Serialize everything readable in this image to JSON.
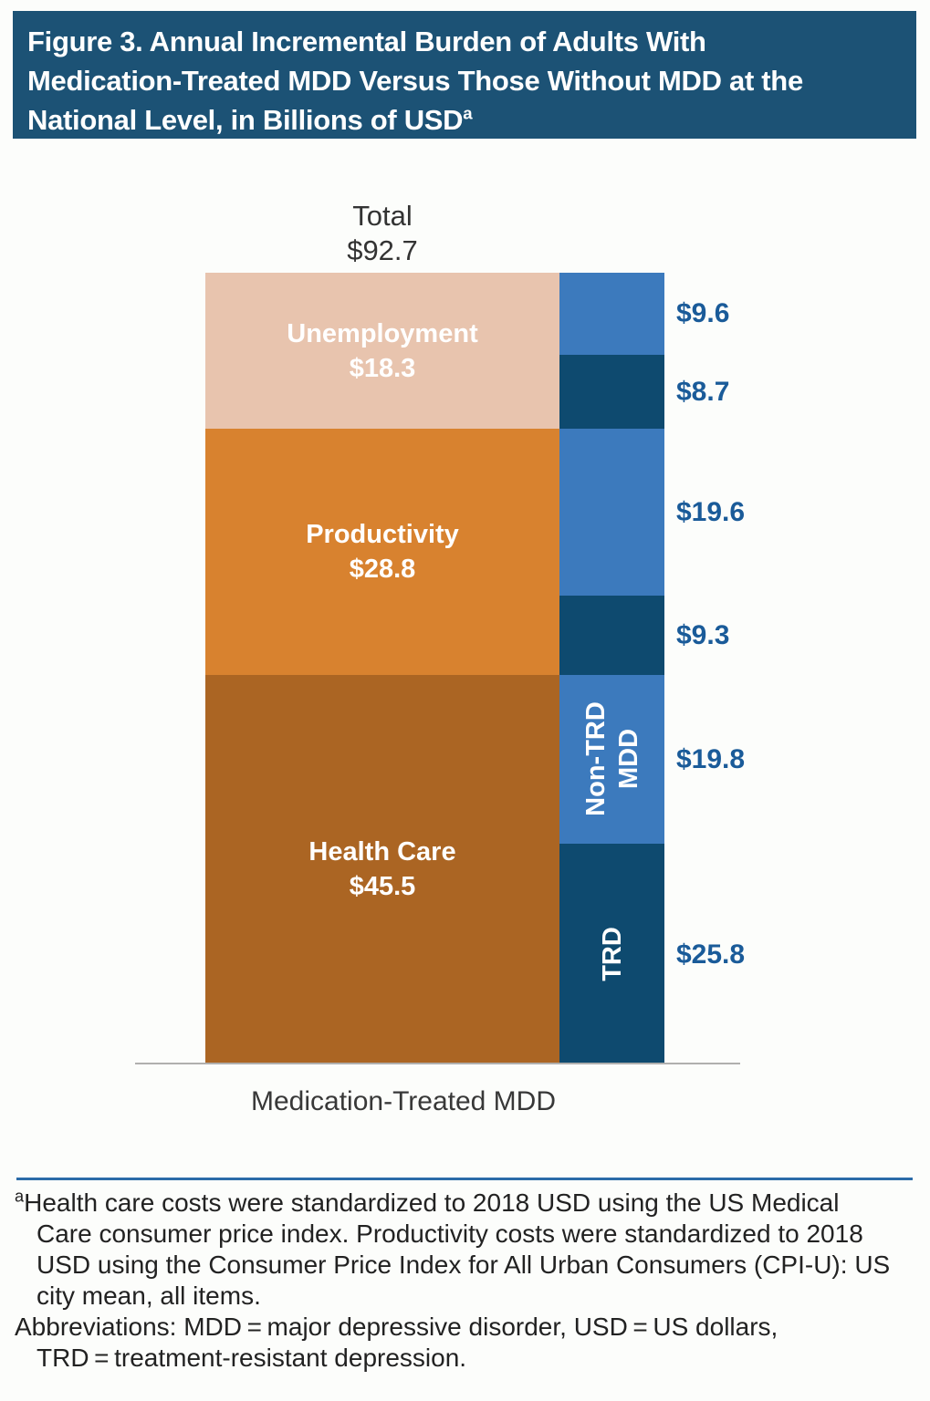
{
  "header": {
    "bg": "#1c5275",
    "line1": "Figure 3. Annual Incremental Burden of Adults With",
    "line2": "Medication-Treated MDD Versus Those Without MDD at the",
    "line3": "National Level, in Billions of USD",
    "sup": "a"
  },
  "chart_data": {
    "type": "bar",
    "subtype": "stacked-bar-pair",
    "title": "Figure 3. Annual Incremental Burden of Adults With Medication-Treated MDD Versus Those Without MDD at the National Level, in Billions of USD",
    "unit": "billions of USD",
    "categories": [
      "Medication-Treated MDD"
    ],
    "x_category_label": "Medication-Treated MDD",
    "total": 92.7,
    "total_label": "Total",
    "total_value_label": "$92.7",
    "ylim": [
      0,
      92.7
    ],
    "grid": false,
    "legend": "none",
    "cost_stack": {
      "description": "left stacked bar: incremental burden by cost category",
      "segments": [
        {
          "name": "Unemployment",
          "label": "Unemployment",
          "value": 18.3,
          "value_label": "$18.3",
          "color": "#e8c4ae"
        },
        {
          "name": "Productivity",
          "label": "Productivity",
          "value": 28.8,
          "value_label": "$28.8",
          "color": "#d8822f"
        },
        {
          "name": "Health Care",
          "label": "Health Care",
          "value": 45.5,
          "value_label": "$45.5",
          "color": "#ab6523"
        }
      ]
    },
    "subtype_stack": {
      "description": "right stacked bar: same burden split by Non-TRD MDD vs TRD within each cost category",
      "segments": [
        {
          "name": "Non-TRD MDD - Unemployment",
          "value": 9.6,
          "value_label": "$9.6",
          "color": "#3c7abd"
        },
        {
          "name": "TRD - Unemployment",
          "value": 8.7,
          "value_label": "$8.7",
          "color": "#0e4a6f"
        },
        {
          "name": "Non-TRD MDD - Productivity",
          "value": 19.6,
          "value_label": "$19.6",
          "color": "#3c7abd"
        },
        {
          "name": "TRD - Productivity",
          "value": 9.3,
          "value_label": "$9.3",
          "color": "#0e4a6f"
        },
        {
          "name": "Non-TRD MDD - Health Care",
          "value": 19.8,
          "value_label": "$19.8",
          "color": "#3c7abd",
          "inner_label_line1": "Non-TRD",
          "inner_label_line2": "MDD"
        },
        {
          "name": "TRD - Health Care",
          "value": 25.8,
          "value_label": "$25.8",
          "color": "#0e4a6f",
          "inner_label": "TRD"
        }
      ]
    }
  },
  "footnote": {
    "sup": "a",
    "line1": "Health care costs were standardized to 2018 USD using the US Medical",
    "line2": "Care consumer price index. Productivity costs were standardized to 2018",
    "line3": "USD using the Consumer Price Index for All Urban Consumers (CPI-U): US",
    "line4": "city mean, all items.",
    "line5": "Abbreviations: MDD = major depressive disorder, USD = US dollars,",
    "line6": "TRD = treatment-resistant depression."
  },
  "colors": {
    "header_bg": "#1c5275",
    "unemployment": "#e8c4ae",
    "productivity": "#d8822f",
    "health_care": "#ab6523",
    "non_trd_blue": "#3c7abd",
    "trd_dark_blue": "#0e4a6f",
    "value_label_text": "#1a5b99",
    "separator_rule": "#2b6ba8",
    "axis_line": "#b0afae"
  }
}
